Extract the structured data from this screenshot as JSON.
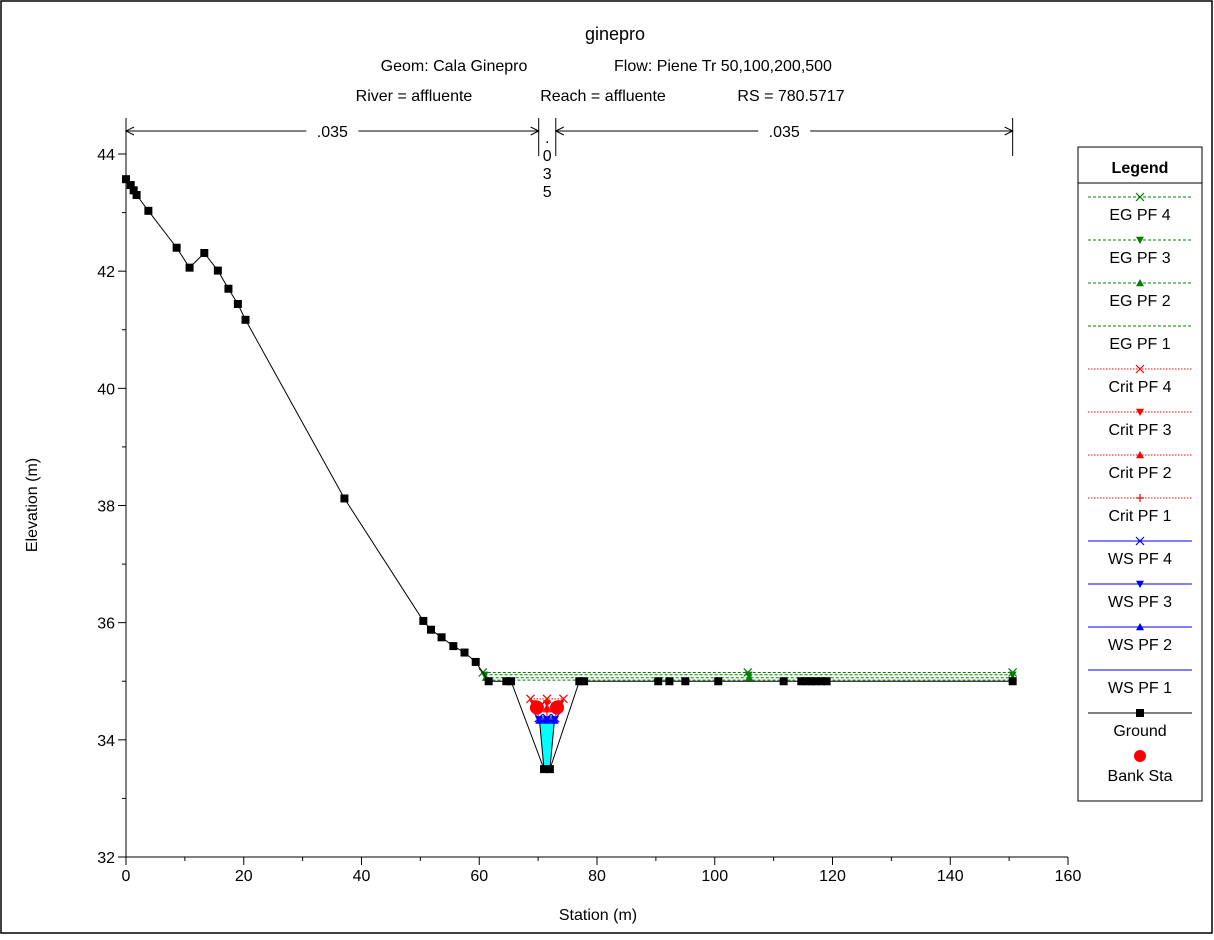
{
  "chart_data": {
    "type": "line",
    "title": "ginepro",
    "subtitle_geom": "Geom: Cala Ginepro",
    "subtitle_flow": "Flow: Piene Tr 50,100,200,500",
    "subtitle_river": "River = affluente",
    "subtitle_reach": "Reach = affluente",
    "subtitle_rs": "RS = 780.5717",
    "xlabel": "Station (m)",
    "ylabel": "Elevation (m)",
    "xlim": [
      0,
      160
    ],
    "ylim": [
      32,
      44.5
    ],
    "x_ticks": [
      "0",
      "20",
      "40",
      "60",
      "80",
      "100",
      "120",
      "140",
      "160"
    ],
    "y_ticks": [
      "32",
      "34",
      "36",
      "38",
      "40",
      "42",
      "44"
    ],
    "grid": false,
    "legend_position": "right",
    "legend_title": "Legend",
    "mannings": [
      {
        "label": ".035",
        "x_start": 0,
        "x_end": 70.1
      },
      {
        "label": ".035",
        "x_start": 70.1,
        "x_end": 73.0,
        "vertical": true,
        "chars": [
          ".",
          "0",
          "3",
          "5"
        ]
      },
      {
        "label": ".035",
        "x_start": 73.0,
        "x_end": 150.6
      }
    ],
    "ground": {
      "name": "Ground",
      "color": "#000000",
      "x": [
        0,
        0.8,
        1.3,
        1.8,
        3.8,
        8.6,
        10.8,
        13.3,
        15.6,
        17.4,
        19.0,
        20.3,
        37.1,
        50.5,
        51.8,
        53.6,
        55.6,
        57.5,
        59.4,
        61.6,
        64.6,
        65.4,
        71.0,
        72.0,
        77.0,
        77.8,
        90.4,
        92.3,
        95.0,
        100.6,
        111.7,
        114.7,
        115.6,
        116.4,
        117.2,
        118.1,
        119.0,
        150.6
      ],
      "y": [
        43.57,
        43.47,
        43.38,
        43.3,
        43.03,
        42.4,
        42.06,
        42.31,
        42.01,
        41.7,
        41.44,
        41.17,
        38.12,
        36.03,
        35.88,
        35.75,
        35.6,
        35.49,
        35.33,
        35.0,
        35.0,
        35.0,
        33.5,
        33.5,
        35.0,
        35.0,
        35.0,
        35.0,
        35.0,
        35.0,
        35.0,
        35.0,
        35.0,
        35.0,
        35.0,
        35.0,
        35.0,
        35.0
      ]
    },
    "bank_sta": {
      "name": "Bank Sta",
      "color": "#ff0000",
      "x": [
        69.8,
        73.2
      ],
      "y": [
        34.55,
        34.55
      ]
    },
    "series": [
      {
        "name": "EG PF 4",
        "color": "#008000",
        "style": "dashed",
        "marker": "x",
        "x_start": 60.6,
        "x_end": 150.6,
        "y": 35.15
      },
      {
        "name": "EG PF 3",
        "color": "#008000",
        "style": "dashed",
        "marker": "triangle-down",
        "x_start": 60.9,
        "x_end": 150.6,
        "y": 35.11
      },
      {
        "name": "EG PF 2",
        "color": "#008000",
        "style": "dashed",
        "marker": "triangle-up",
        "x_start": 61.1,
        "x_end": 150.6,
        "y": 35.06
      },
      {
        "name": "EG PF 1",
        "color": "#008000",
        "style": "dashed",
        "marker": "none",
        "x_start": 61.4,
        "x_end": 150.6,
        "y": 35.02
      },
      {
        "name": "Crit PF 4",
        "color": "#ff0000",
        "style": "dotted",
        "marker": "x",
        "x_start": 68.7,
        "x_end": 74.3,
        "y": 34.7
      },
      {
        "name": "Crit PF 3",
        "color": "#ff0000",
        "style": "dotted",
        "marker": "triangle-down",
        "x_start": 69.2,
        "x_end": 73.8,
        "y": 34.62
      },
      {
        "name": "Crit PF 2",
        "color": "#ff0000",
        "style": "dotted",
        "marker": "triangle-up",
        "x_start": 69.6,
        "x_end": 73.4,
        "y": 34.55
      },
      {
        "name": "Crit PF 1",
        "color": "#ff0000",
        "style": "dotted",
        "marker": "plus",
        "x_start": 70.0,
        "x_end": 73.0,
        "y": 34.48
      },
      {
        "name": "WS PF 4",
        "color": "#0000ff",
        "style": "solid",
        "marker": "x",
        "x_start": 70.1,
        "x_end": 72.9,
        "y": 34.37
      },
      {
        "name": "WS PF 3",
        "color": "#0000ff",
        "style": "solid",
        "marker": "triangle-down",
        "x_start": 70.15,
        "x_end": 72.85,
        "y": 34.35
      },
      {
        "name": "WS PF 2",
        "color": "#0000ff",
        "style": "solid",
        "marker": "triangle-up",
        "x_start": 70.2,
        "x_end": 72.8,
        "y": 34.33
      },
      {
        "name": "WS PF 1",
        "color": "#0000ff",
        "style": "solid",
        "marker": "none",
        "x_start": 70.25,
        "x_end": 72.75,
        "y": 34.31
      }
    ],
    "water_fill_color": "#00ffff"
  }
}
